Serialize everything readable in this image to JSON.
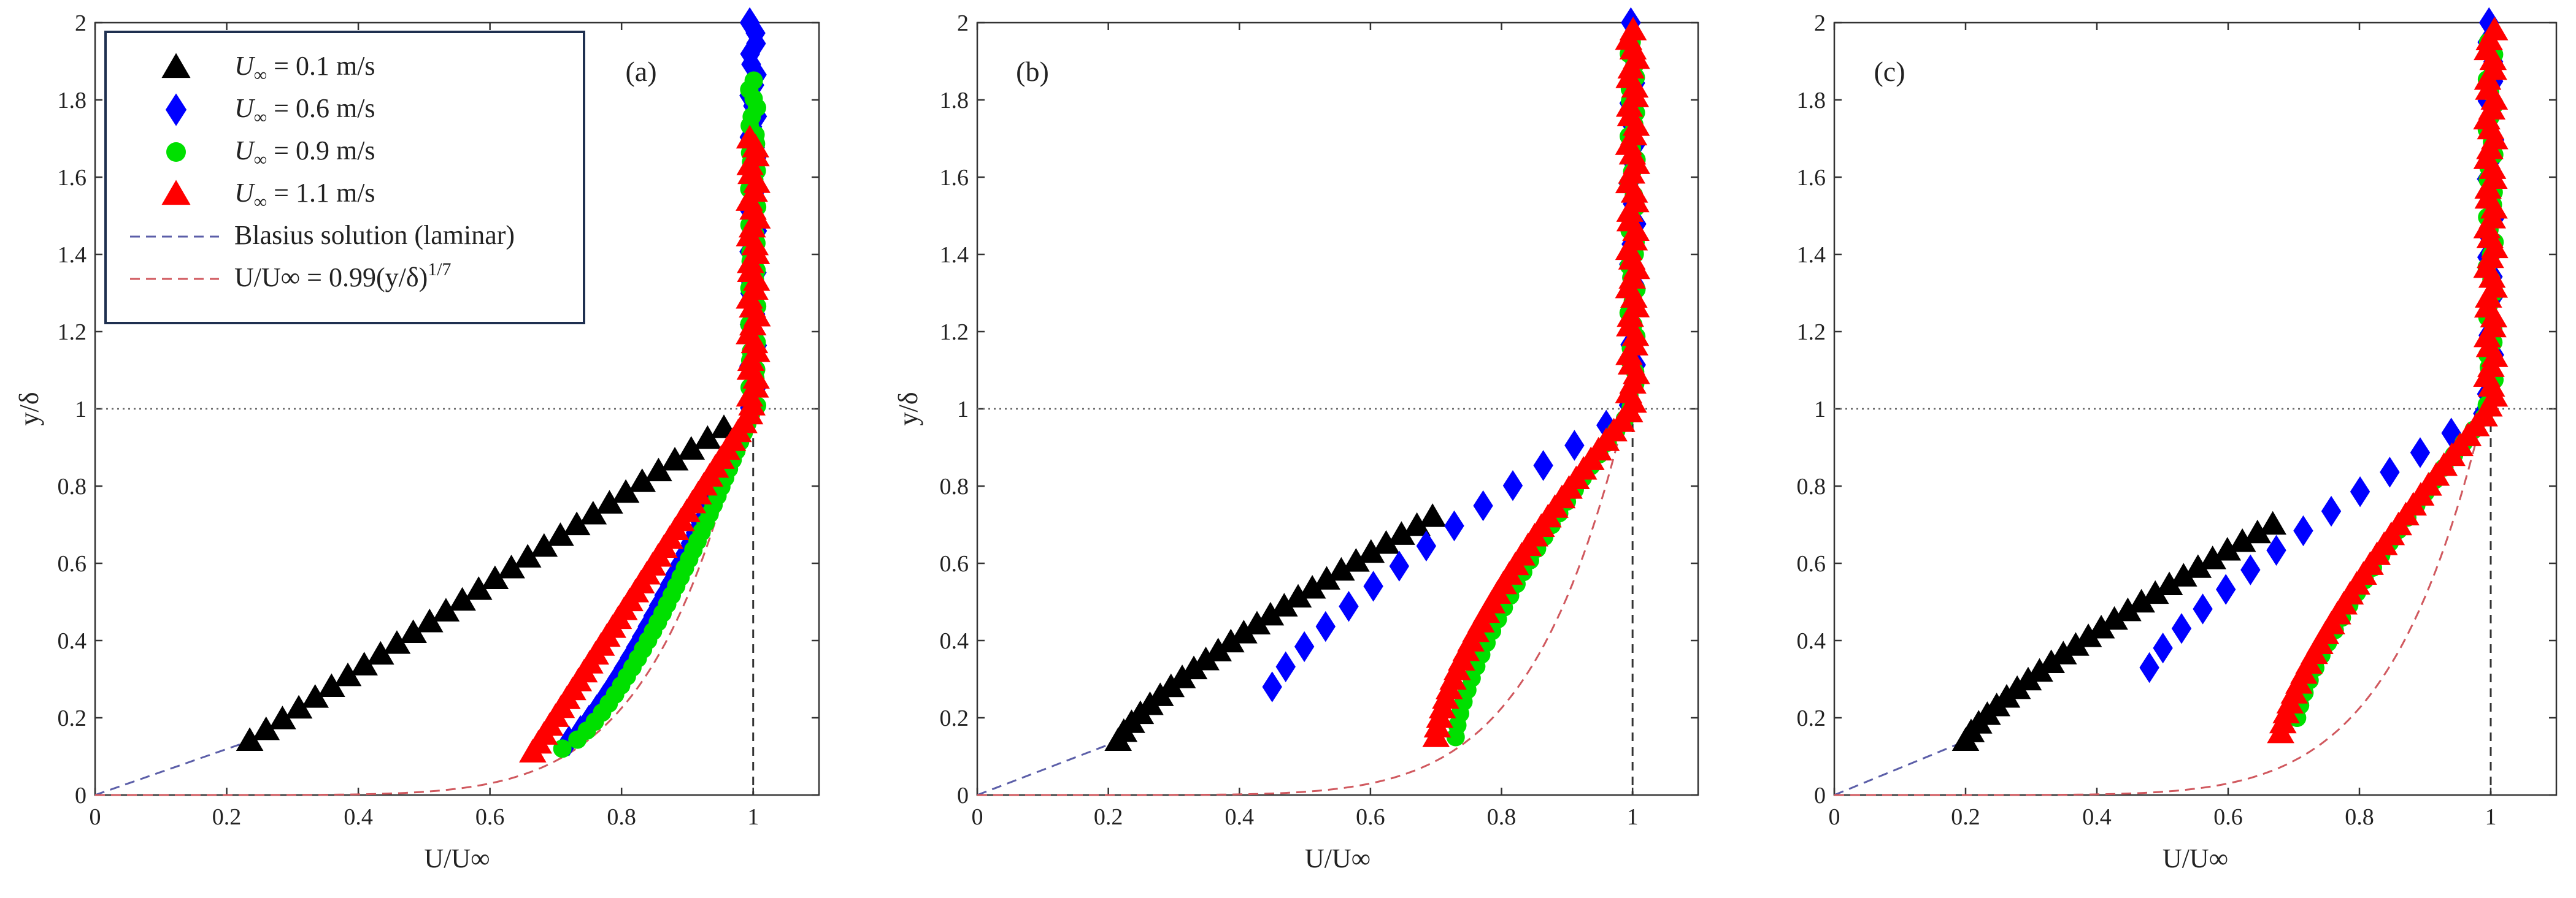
{
  "colors": {
    "u01": "#000000",
    "u06": "#0000ff",
    "u09": "#00e000",
    "u11": "#ff0000",
    "blasius": "#5b5ea8",
    "power_law": "#d0585e",
    "legend_border": "#1f3050"
  },
  "legend": {
    "items": [
      {
        "key": "u01",
        "prefix": "U",
        "sub": "∞",
        "rest": " = 0.1 m/s",
        "marker": "triangle"
      },
      {
        "key": "u06",
        "prefix": "U",
        "sub": "∞",
        "rest": " = 0.6 m/s",
        "marker": "diamond"
      },
      {
        "key": "u09",
        "prefix": "U",
        "sub": "∞",
        "rest": " = 0.9 m/s",
        "marker": "circle"
      },
      {
        "key": "u11",
        "prefix": "U",
        "sub": "∞",
        "rest": " = 1.1 m/s",
        "marker": "triangle"
      },
      {
        "key": "blasius",
        "text": "Blasius solution (laminar)",
        "marker": "dash"
      },
      {
        "key": "power_law",
        "text": "U/U∞ = 0.99(y/δ)^1/7",
        "marker": "dash"
      }
    ],
    "placement": "top-left of panel (a)"
  },
  "chart_data": [
    {
      "type": "scatter",
      "panel_label": "(a)",
      "xlabel": "U/U∞",
      "ylabel": "y/δ",
      "xlim": [
        0,
        1.1
      ],
      "ylim": [
        0,
        2
      ],
      "xticks": [
        0,
        0.2,
        0.4,
        0.6,
        0.8,
        1
      ],
      "yticks": [
        0,
        0.2,
        0.4,
        0.6,
        0.8,
        1,
        1.2,
        1.4,
        1.6,
        1.8,
        2
      ],
      "reference_lines": {
        "horizontal_y": 1,
        "vertical_x": 1
      },
      "series": [
        {
          "name": "U∞ = 0.1 m/s",
          "key": "u01",
          "marker": "triangle",
          "profile": {
            "x0": 0.235,
            "y0": 0.14,
            "y_end": 0.95,
            "n": 30,
            "a": 1.0
          }
        },
        {
          "name": "U∞ = 0.6 m/s",
          "key": "u06",
          "marker": "diamond",
          "profile": {
            "x0": 0.72,
            "y0": 0.14,
            "y_end": 2.0,
            "n": 70,
            "a": 0.8
          }
        },
        {
          "name": "U∞ = 0.9 m/s",
          "key": "u09",
          "marker": "circle",
          "profile": {
            "x0": 0.71,
            "y0": 0.12,
            "y_end": 1.85,
            "n": 75,
            "a": 0.7
          }
        },
        {
          "name": "U∞ = 1.1 m/s",
          "key": "u11",
          "marker": "triangle",
          "profile": {
            "x0": 0.665,
            "y0": 0.11,
            "y_end": 1.7,
            "n": 70,
            "a": 1.0
          }
        }
      ],
      "blasius_segment": {
        "from": [
          0,
          0
        ],
        "to": [
          0.235,
          0.14
        ]
      }
    },
    {
      "type": "scatter",
      "panel_label": "(b)",
      "xlabel": "U/U∞",
      "ylabel": "y/δ",
      "xlim": [
        0,
        1.1
      ],
      "ylim": [
        0,
        2
      ],
      "xticks": [
        0,
        0.2,
        0.4,
        0.6,
        0.8,
        1
      ],
      "yticks": [
        0,
        0.2,
        0.4,
        0.6,
        0.8,
        1,
        1.2,
        1.4,
        1.6,
        1.8,
        2
      ],
      "reference_lines": {
        "horizontal_y": 1,
        "vertical_x": 1
      },
      "series": [
        {
          "name": "U∞ = 0.1 m/s",
          "key": "u01",
          "marker": "triangle",
          "profile": {
            "x0": 0.215,
            "y0": 0.14,
            "y_end": 0.72,
            "n": 26,
            "a": 1.25
          }
        },
        {
          "name": "U∞ = 0.6 m/s",
          "key": "u06",
          "marker": "diamond",
          "profile": {
            "x0": 0.45,
            "y0": 0.28,
            "y_end": 2.0,
            "n": 34,
            "a": 1.25
          }
        },
        {
          "name": "U∞ = 0.9 m/s",
          "key": "u09",
          "marker": "circle",
          "profile": {
            "x0": 0.73,
            "y0": 0.15,
            "y_end": 1.95,
            "n": 60,
            "a": 1.4
          }
        },
        {
          "name": "U∞ = 1.1 m/s",
          "key": "u11",
          "marker": "triangle",
          "profile": {
            "x0": 0.7,
            "y0": 0.15,
            "y_end": 1.98,
            "n": 75,
            "a": 1.4
          }
        }
      ],
      "blasius_segment": {
        "from": [
          0,
          0
        ],
        "to": [
          0.215,
          0.14
        ]
      }
    },
    {
      "type": "scatter",
      "panel_label": "(c)",
      "xlabel": "U/U∞",
      "ylabel": "",
      "xlim": [
        0,
        1.1
      ],
      "ylim": [
        0,
        2
      ],
      "xticks": [
        0,
        0.2,
        0.4,
        0.6,
        0.8,
        1
      ],
      "yticks": [
        0,
        0.2,
        0.4,
        0.6,
        0.8,
        1,
        1.2,
        1.4,
        1.6,
        1.8,
        2
      ],
      "reference_lines": {
        "horizontal_y": 1,
        "vertical_x": 1
      },
      "series": [
        {
          "name": "U∞ = 0.1 m/s",
          "key": "u01",
          "marker": "triangle",
          "profile": {
            "x0": 0.2,
            "y0": 0.14,
            "y_end": 0.7,
            "n": 26,
            "a": 1.25
          }
        },
        {
          "name": "U∞ = 0.6 m/s",
          "key": "u06",
          "marker": "diamond",
          "profile": {
            "x0": 0.48,
            "y0": 0.33,
            "y_end": 2.0,
            "n": 34,
            "a": 1.25
          }
        },
        {
          "name": "U∞ = 0.9 m/s",
          "key": "u09",
          "marker": "circle",
          "profile": {
            "x0": 0.705,
            "y0": 0.2,
            "y_end": 1.95,
            "n": 55,
            "a": 1.3
          }
        },
        {
          "name": "U∞ = 1.1 m/s",
          "key": "u11",
          "marker": "triangle",
          "profile": {
            "x0": 0.68,
            "y0": 0.16,
            "y_end": 1.98,
            "n": 72,
            "a": 1.3
          }
        }
      ],
      "blasius_segment": {
        "from": [
          0,
          0
        ],
        "to": [
          0.2,
          0.14
        ]
      }
    }
  ]
}
